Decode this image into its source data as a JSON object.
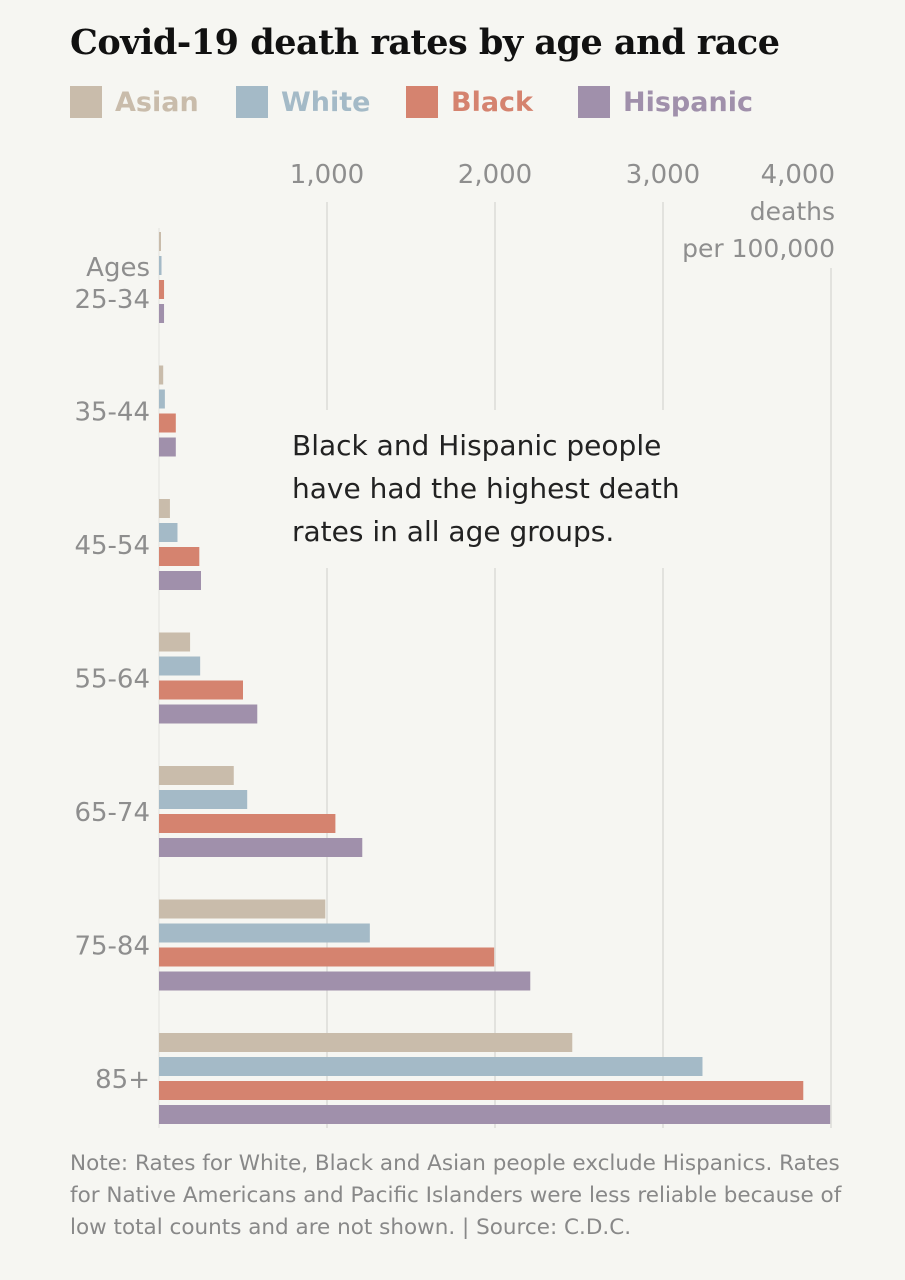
{
  "title": "Covid-19 death rates by age and race",
  "annotation": "Black and Hispanic people have had the highest death rates in all age groups.",
  "note": "Note: Rates for White, Black and Asian people exclude Hispanics. Rates for Native Americans and Pacific Islanders were less reliable because of low total counts and are not shown. | Source: C.D.C.",
  "chart_data": {
    "type": "bar",
    "orientation": "horizontal",
    "title": "Covid-19 death rates by age and race",
    "category_axis_label": "Ages",
    "value_axis_unit": [
      "deaths",
      "per 100,000"
    ],
    "categories": [
      "25-34",
      "35-44",
      "45-54",
      "55-64",
      "65-74",
      "75-84",
      "85+"
    ],
    "value_ticks": [
      {
        "value": 1000,
        "label": "1,000"
      },
      {
        "value": 2000,
        "label": "2,000"
      },
      {
        "value": 3000,
        "label": "3,000"
      },
      {
        "value": 4000,
        "label": "4,000"
      }
    ],
    "xlim": [
      0,
      4000
    ],
    "grid": true,
    "legend_placement": "top",
    "series": [
      {
        "name": "Asian",
        "color": "#c9bcab",
        "values": [
          10,
          25,
          65,
          185,
          445,
          990,
          2460
        ]
      },
      {
        "name": "White",
        "color": "#a4bac7",
        "values": [
          15,
          35,
          110,
          245,
          525,
          1255,
          3235
        ]
      },
      {
        "name": "Black",
        "color": "#d5836f",
        "values": [
          30,
          100,
          240,
          500,
          1050,
          1995,
          3835
        ]
      },
      {
        "name": "Hispanic",
        "color": "#a090ab",
        "values": [
          30,
          100,
          250,
          585,
          1210,
          2210,
          3995
        ]
      }
    ]
  }
}
